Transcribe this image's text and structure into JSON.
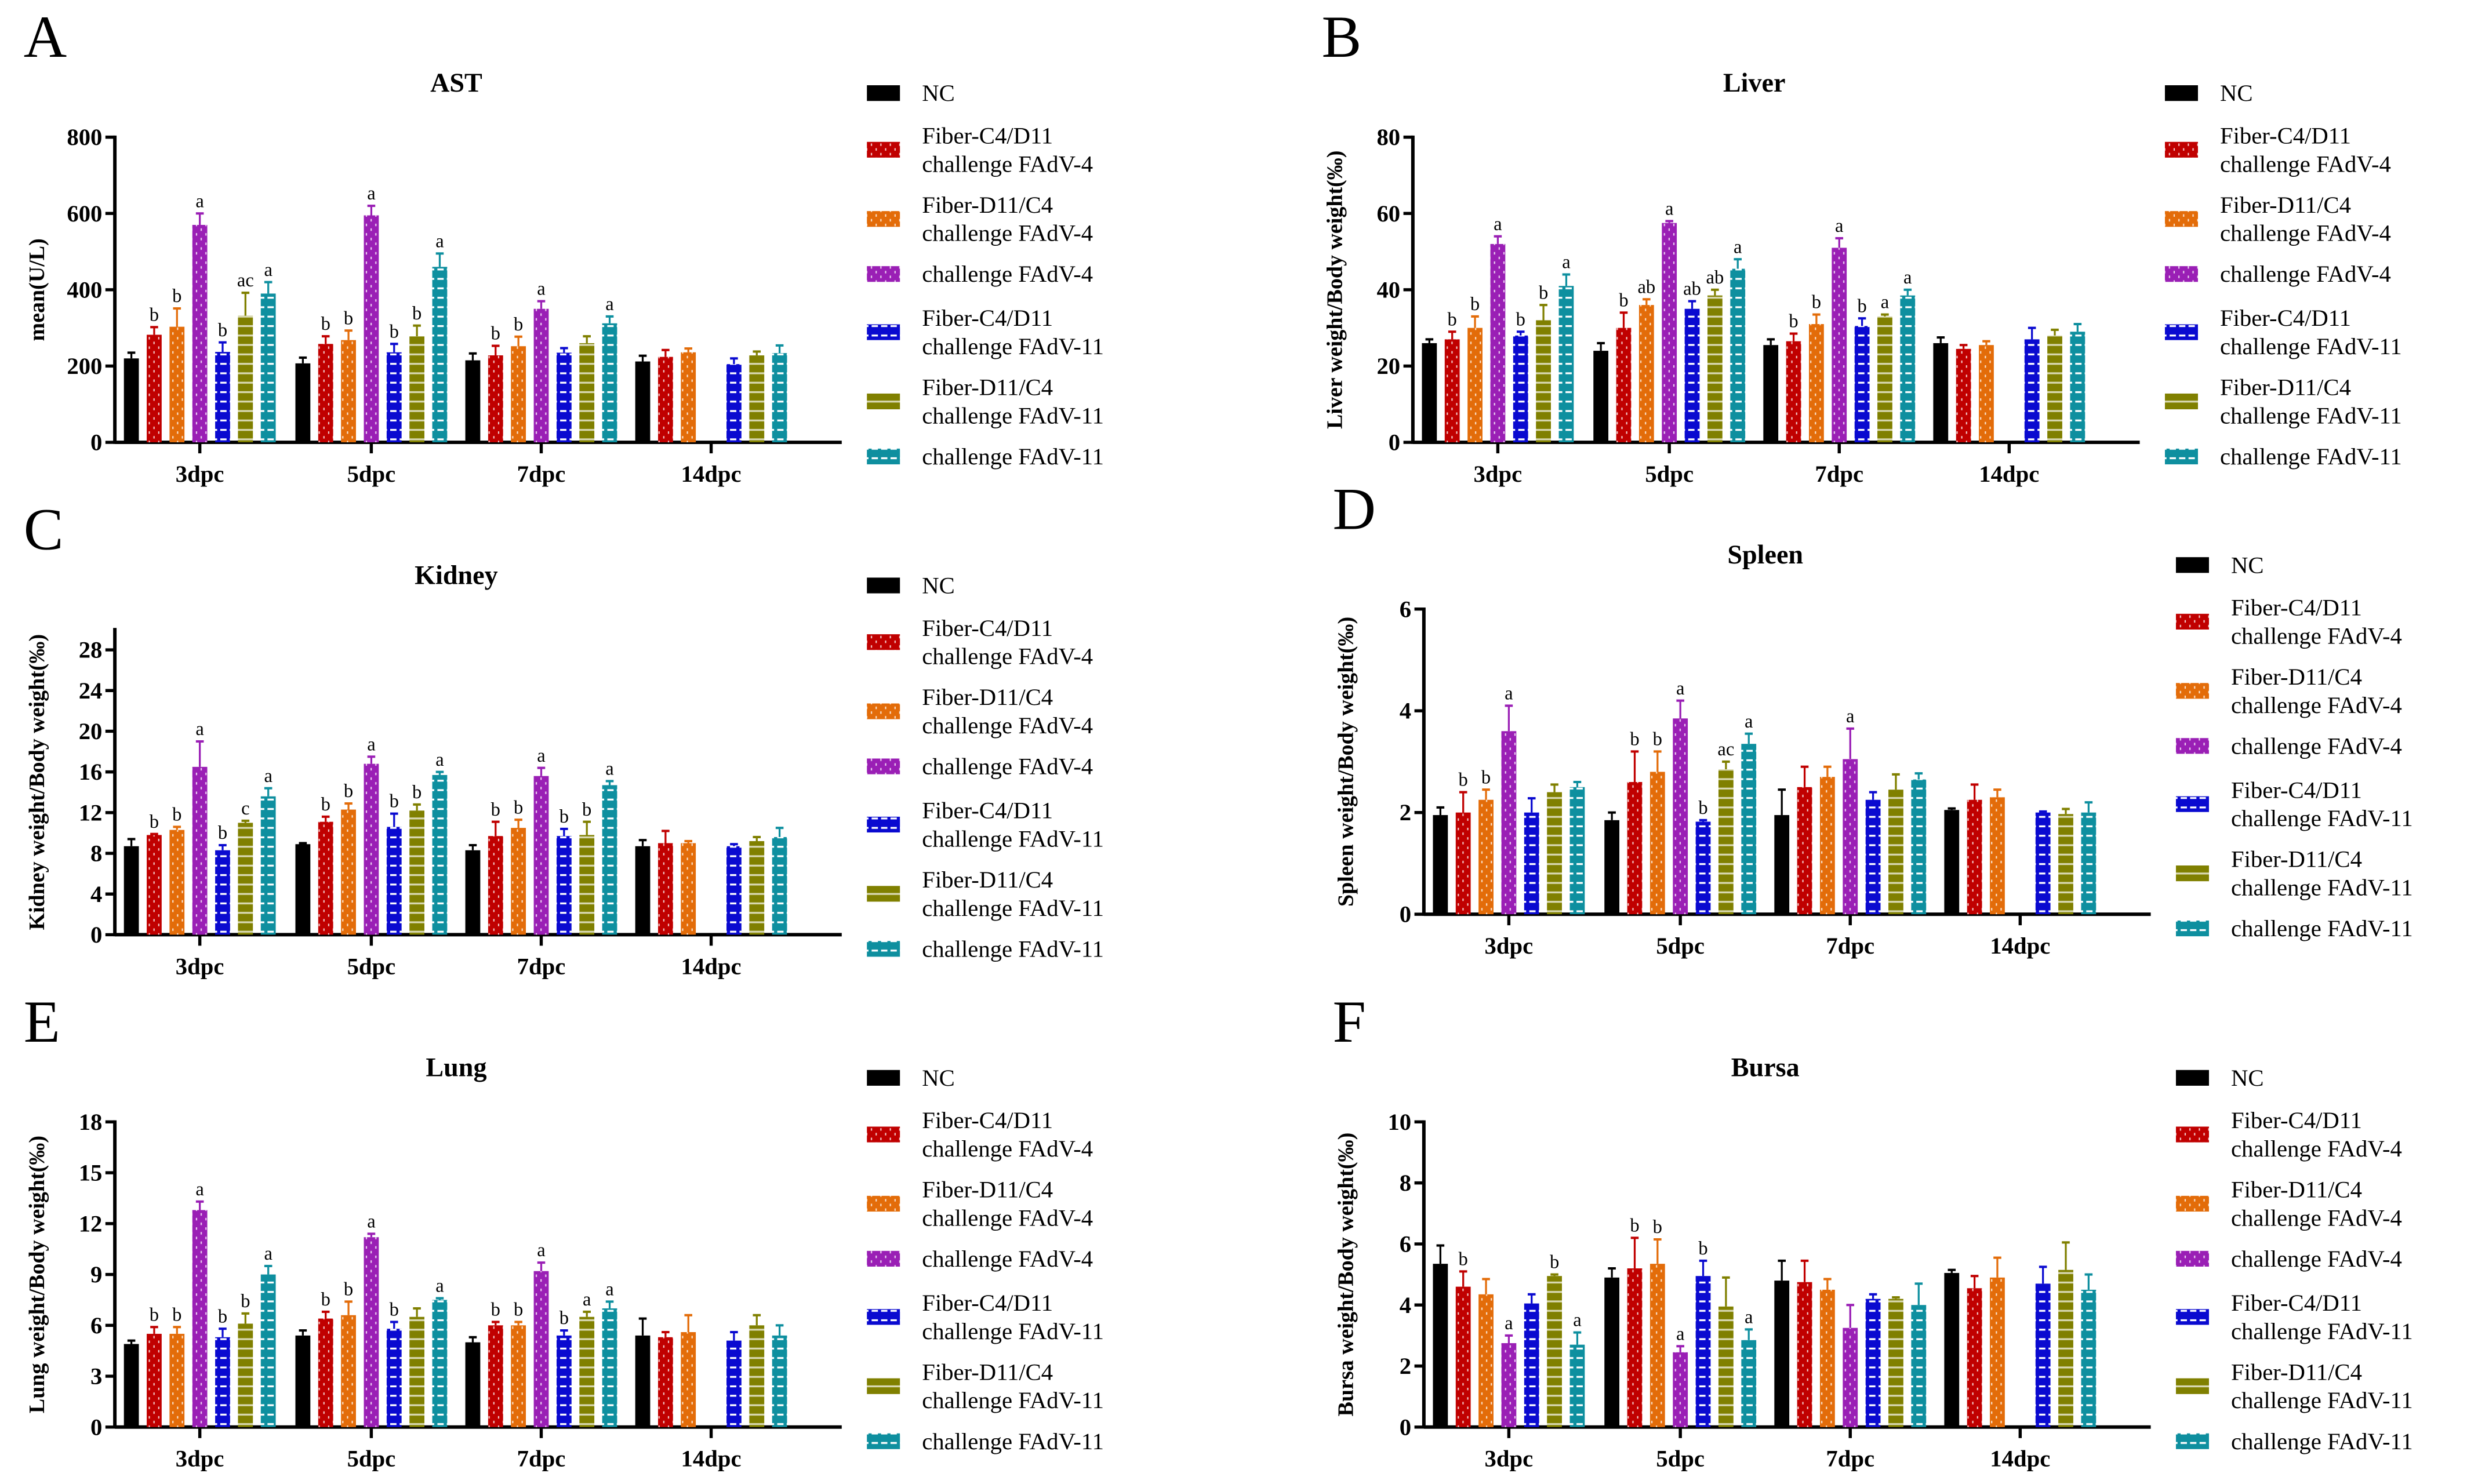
{
  "colors": {
    "NC": "#000000",
    "fc4_4": "#c00000",
    "fd11_4": "#e36c09",
    "ch4": "#9a1fb5",
    "fc4_11": "#0a0ad0",
    "fd11_11": "#808000",
    "ch11": "#0e8f9f"
  },
  "legend": [
    {
      "lines": [
        "NC"
      ],
      "pattern": "solid"
    },
    {
      "lines": [
        "Fiber-C4/D11",
        "challenge FAdV-4"
      ],
      "pattern": "dots"
    },
    {
      "lines": [
        "Fiber-D11/C4",
        "challenge FAdV-4"
      ],
      "pattern": "dots"
    },
    {
      "lines": [
        "challenge FAdV-4"
      ],
      "pattern": "dots"
    },
    {
      "lines": [
        "Fiber-C4/D11",
        "challenge FAdV-11"
      ],
      "pattern": "dashes"
    },
    {
      "lines": [
        "Fiber-D11/C4",
        "challenge FAdV-11"
      ],
      "pattern": "stripes"
    },
    {
      "lines": [
        "challenge FAdV-11"
      ],
      "pattern": "dashes"
    }
  ],
  "chart_data": [
    {
      "panel": "A",
      "type": "bar",
      "title": "AST",
      "ylabel": "mean(U/L)",
      "ylim": [
        0,
        800
      ],
      "yticks": [
        0,
        200,
        400,
        600,
        800
      ],
      "categories": [
        "3dpc",
        "5dpc",
        "7dpc",
        "14dpc"
      ],
      "values": [
        [
          220,
          282,
          303,
          570,
          237,
          332,
          390
        ],
        [
          207,
          258,
          268,
          595,
          236,
          278,
          460
        ],
        [
          215,
          228,
          252,
          350,
          235,
          260,
          312
        ],
        [
          212,
          224,
          236,
          null,
          205,
          228,
          234
        ]
      ],
      "errors": [
        [
          15,
          20,
          48,
          30,
          25,
          60,
          30
        ],
        [
          15,
          20,
          25,
          25,
          22,
          28,
          35
        ],
        [
          18,
          25,
          25,
          20,
          12,
          18,
          18
        ],
        [
          15,
          18,
          10,
          0,
          15,
          10,
          20
        ]
      ],
      "labels": [
        [
          "",
          "b",
          "b",
          "a",
          "b",
          "ac",
          "a"
        ],
        [
          "",
          "b",
          "b",
          "a",
          "b",
          "b",
          "a"
        ],
        [
          "",
          "b",
          "b",
          "a",
          "",
          "",
          "a"
        ],
        [
          "",
          "",
          "",
          "",
          "",
          "",
          ""
        ]
      ]
    },
    {
      "panel": "B",
      "type": "bar",
      "title": "Liver",
      "ylabel": "Liver weight/Body weight(‰)",
      "ylim": [
        0,
        80
      ],
      "yticks": [
        0,
        20,
        40,
        60,
        80
      ],
      "categories": [
        "3dpc",
        "5dpc",
        "7dpc",
        "14dpc"
      ],
      "values": [
        [
          26,
          27,
          30,
          52,
          28,
          32,
          41
        ],
        [
          24,
          30,
          36,
          57.5,
          35,
          38.5,
          45.5
        ],
        [
          25.5,
          26.5,
          31,
          51,
          30.5,
          33,
          38.5
        ],
        [
          26,
          24.5,
          25.5,
          null,
          27,
          28,
          29
        ]
      ],
      "errors": [
        [
          1,
          2,
          3,
          2,
          1,
          4,
          3
        ],
        [
          2,
          4,
          1.5,
          0.5,
          2,
          1.5,
          2.5
        ],
        [
          1.5,
          2,
          2.5,
          2.5,
          2,
          0.5,
          1.5
        ],
        [
          1.5,
          1,
          1,
          0,
          3,
          1.5,
          2
        ]
      ],
      "labels": [
        [
          "",
          "b",
          "b",
          "a",
          "b",
          "b",
          "a"
        ],
        [
          "",
          "b",
          "ab",
          "a",
          "ab",
          "ab",
          "a"
        ],
        [
          "",
          "b",
          "b",
          "a",
          "b",
          "a",
          "a"
        ],
        [
          "",
          "",
          "",
          "",
          "",
          "",
          ""
        ]
      ]
    },
    {
      "panel": "C",
      "type": "bar",
      "title": "Kidney",
      "ylabel": "Kidney weight/Body weight(‰)",
      "ylim": [
        0,
        30
      ],
      "yticks": [
        0,
        4,
        8,
        12,
        16,
        20,
        24,
        28
      ],
      "categories": [
        "3dpc",
        "5dpc",
        "7dpc",
        "14dpc"
      ],
      "values": [
        [
          8.7,
          9.8,
          10.3,
          16.5,
          8.3,
          11,
          13.6
        ],
        [
          8.9,
          11.1,
          12.3,
          16.8,
          10.6,
          12.2,
          15.7
        ],
        [
          8.3,
          9.7,
          10.5,
          15.6,
          9.7,
          9.8,
          14.7
        ],
        [
          8.7,
          9,
          9,
          null,
          8.7,
          9.2,
          9.6
        ]
      ],
      "errors": [
        [
          0.7,
          0.1,
          0.3,
          2.5,
          0.5,
          0.2,
          0.8
        ],
        [
          0.1,
          0.5,
          0.6,
          0.7,
          1.3,
          0.6,
          0.3
        ],
        [
          0.5,
          1.4,
          0.8,
          0.8,
          0.7,
          1.3,
          0.4
        ],
        [
          0.6,
          1.2,
          0.2,
          0,
          0.2,
          0.4,
          0.9
        ]
      ],
      "labels": [
        [
          "",
          "b",
          "b",
          "a",
          "b",
          "c",
          "a"
        ],
        [
          "",
          "b",
          "b",
          "a",
          "b",
          "b",
          "a"
        ],
        [
          "",
          "b",
          "b",
          "a",
          "b",
          "b",
          "a"
        ],
        [
          "",
          "",
          "",
          "",
          "",
          "",
          ""
        ]
      ]
    },
    {
      "panel": "D",
      "type": "bar",
      "title": "Spleen",
      "ylabel": "Spleen weight/Body weight(‰)",
      "ylim": [
        0,
        6
      ],
      "yticks": [
        0,
        2,
        4,
        6
      ],
      "categories": [
        "3dpc",
        "5dpc",
        "7dpc",
        "14dpc"
      ],
      "values": [
        [
          1.95,
          2.0,
          2.25,
          3.6,
          2.0,
          2.4,
          2.5
        ],
        [
          1.85,
          2.6,
          2.8,
          3.85,
          1.82,
          2.85,
          3.35
        ],
        [
          1.95,
          2.5,
          2.7,
          3.05,
          2.25,
          2.45,
          2.65
        ],
        [
          2.05,
          2.25,
          2.3,
          null,
          2.0,
          1.97,
          2.0
        ]
      ],
      "errors": [
        [
          0.15,
          0.4,
          0.2,
          0.5,
          0.28,
          0.15,
          0.1
        ],
        [
          0.15,
          0.6,
          0.4,
          0.35,
          0.03,
          0.15,
          0.2
        ],
        [
          0.5,
          0.4,
          0.2,
          0.6,
          0.15,
          0.3,
          0.12
        ],
        [
          0.03,
          0.3,
          0.15,
          0,
          0.02,
          0.1,
          0.2
        ]
      ],
      "labels": [
        [
          "",
          "b",
          "b",
          "a",
          "",
          "",
          ""
        ],
        [
          "",
          "b",
          "b",
          "a",
          "b",
          "ac",
          "a"
        ],
        [
          "",
          "",
          "",
          "a",
          "",
          "",
          ""
        ],
        [
          "",
          "",
          "",
          "",
          "",
          "",
          ""
        ]
      ]
    },
    {
      "panel": "E",
      "type": "bar",
      "title": "Lung",
      "ylabel": "Lung weight/Body weight(‰)",
      "ylim": [
        0,
        18
      ],
      "yticks": [
        0,
        3,
        6,
        9,
        12,
        15,
        18
      ],
      "categories": [
        "3dpc",
        "5dpc",
        "7dpc",
        "14dpc"
      ],
      "values": [
        [
          4.9,
          5.5,
          5.5,
          12.8,
          5.3,
          6.1,
          9.0
        ],
        [
          5.4,
          6.4,
          6.6,
          11.2,
          5.8,
          6.5,
          7.5
        ],
        [
          5.0,
          6.0,
          6.0,
          9.2,
          5.4,
          6.5,
          7.0
        ],
        [
          5.4,
          5.3,
          5.6,
          null,
          5.1,
          6.0,
          5.4
        ]
      ],
      "errors": [
        [
          0.2,
          0.4,
          0.4,
          0.5,
          0.5,
          0.6,
          0.5
        ],
        [
          0.3,
          0.4,
          0.8,
          0.2,
          0.4,
          0.5,
          0.1
        ],
        [
          0.3,
          0.2,
          0.2,
          0.5,
          0.3,
          0.3,
          0.4
        ],
        [
          1.0,
          0.3,
          1.0,
          0,
          0.5,
          0.6,
          0.6
        ]
      ],
      "labels": [
        [
          "",
          "b",
          "b",
          "a",
          "b",
          "b",
          "a"
        ],
        [
          "",
          "b",
          "b",
          "a",
          "b",
          "",
          "a"
        ],
        [
          "",
          "b",
          "b",
          "a",
          "b",
          "a",
          "a"
        ],
        [
          "",
          "",
          "",
          "",
          "",
          "",
          ""
        ]
      ]
    },
    {
      "panel": "F",
      "type": "bar",
      "title": "Bursa",
      "ylabel": "Bursa weight/Body weight(‰)",
      "ylim": [
        0,
        10
      ],
      "yticks": [
        0,
        2,
        4,
        6,
        8,
        10
      ],
      "categories": [
        "3dpc",
        "5dpc",
        "7dpc",
        "14dpc"
      ],
      "values": [
        [
          5.35,
          4.6,
          4.35,
          2.75,
          4.05,
          4.95,
          2.7
        ],
        [
          4.9,
          5.2,
          5.35,
          2.45,
          4.95,
          3.95,
          2.85
        ],
        [
          4.8,
          4.75,
          4.5,
          3.25,
          4.2,
          4.2,
          4.0
        ],
        [
          5.05,
          4.55,
          4.9,
          null,
          4.7,
          5.15,
          4.5
        ]
      ],
      "errors": [
        [
          0.6,
          0.5,
          0.5,
          0.25,
          0.3,
          0.05,
          0.4
        ],
        [
          0.3,
          1.0,
          0.8,
          0.2,
          0.5,
          0.95,
          0.35
        ],
        [
          0.65,
          0.7,
          0.35,
          0.75,
          0.15,
          0.05,
          0.7
        ],
        [
          0.1,
          0.4,
          0.65,
          0,
          0.55,
          0.9,
          0.5
        ]
      ],
      "labels": [
        [
          "",
          "b",
          "",
          "a",
          "",
          "b",
          "a"
        ],
        [
          "",
          "b",
          "b",
          "a",
          "b",
          "",
          "a"
        ],
        [
          "",
          "",
          "",
          "",
          "",
          "",
          ""
        ],
        [
          "",
          "",
          "",
          "",
          "",
          "",
          ""
        ]
      ]
    }
  ]
}
